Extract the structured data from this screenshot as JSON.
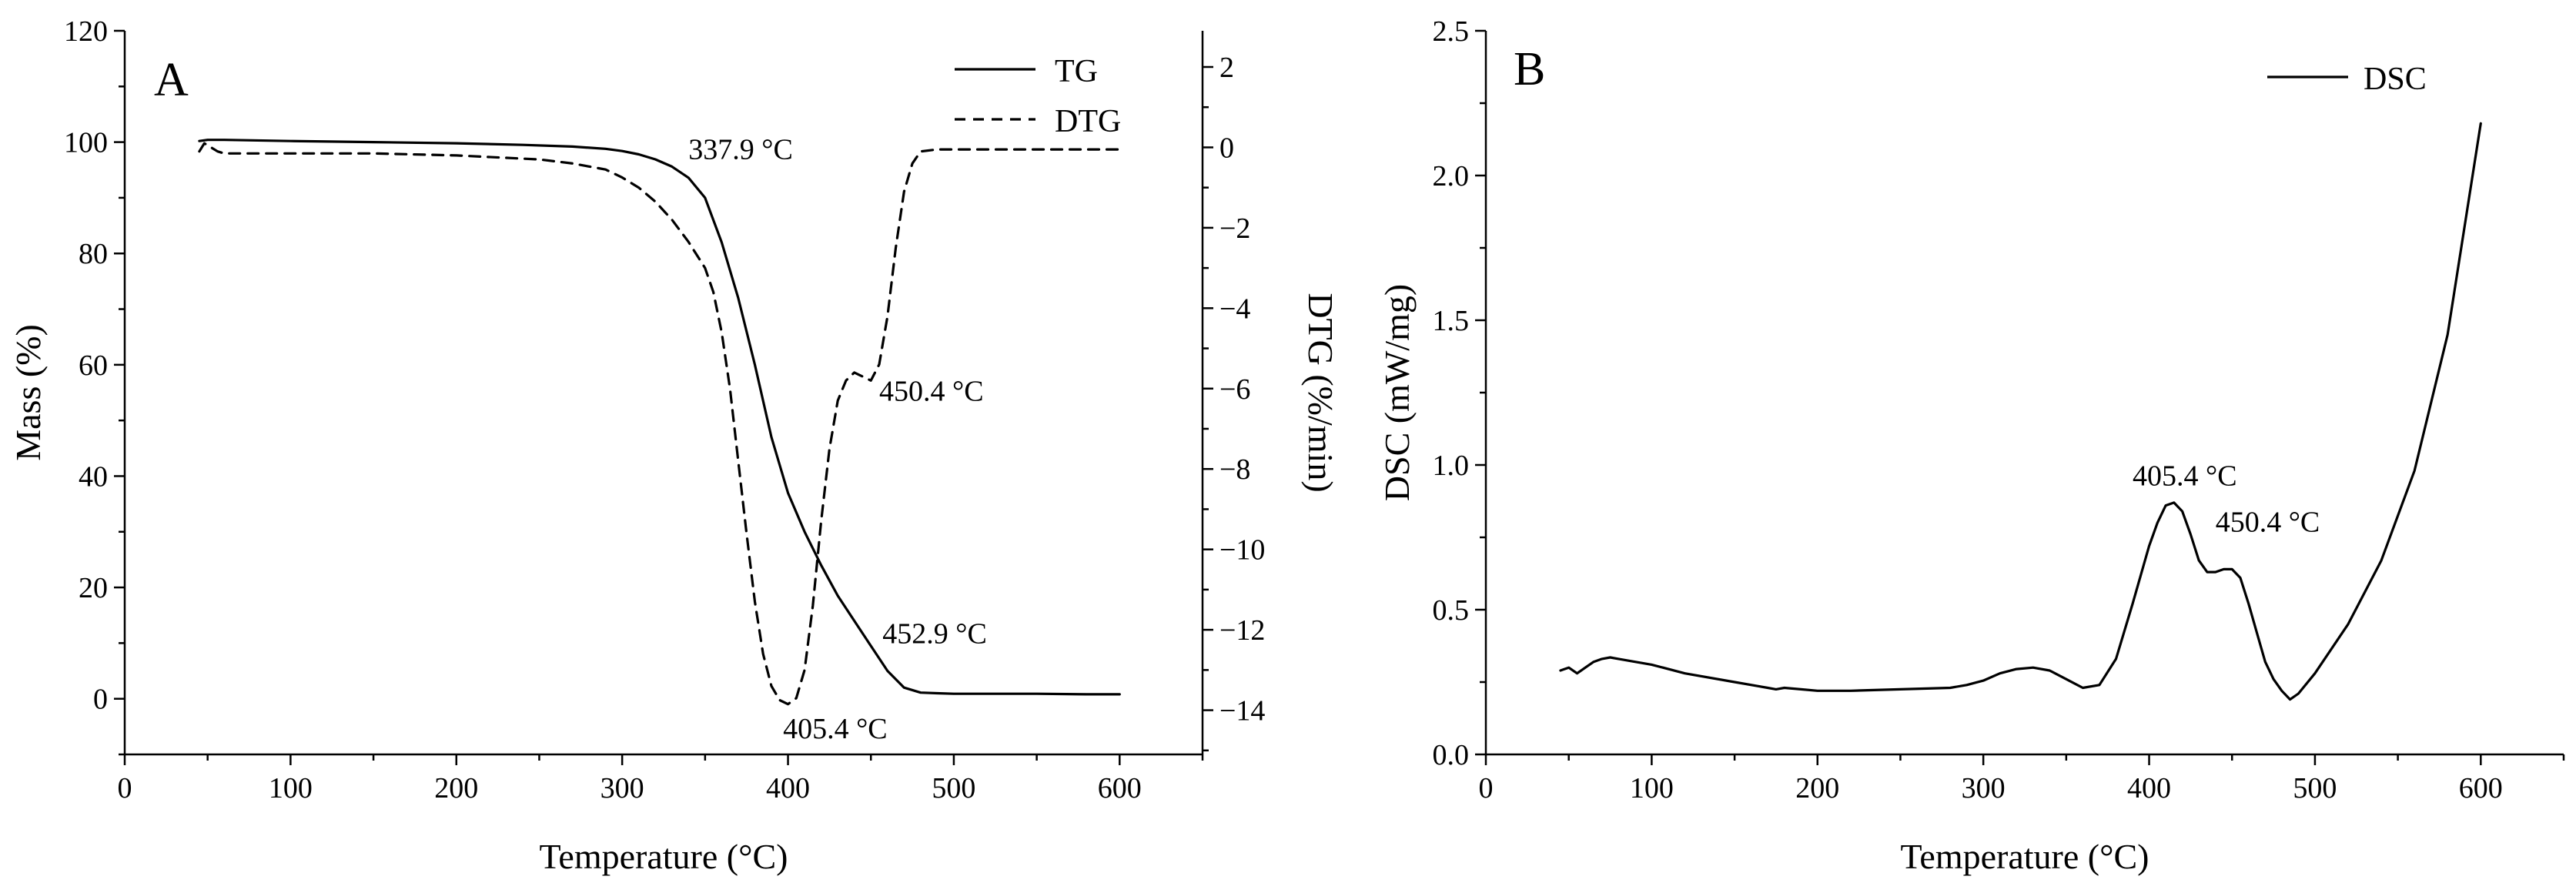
{
  "chart_data": [
    {
      "panel": "A",
      "type": "line",
      "xlabel": "Temperature (°C)",
      "ylabel": "Mass (%)",
      "y2label": "DTG (%/min)",
      "xlim": [
        0,
        650
      ],
      "ylim": [
        -10,
        120
      ],
      "y2lim": [
        -15.1,
        2.9
      ],
      "xticks": [
        0,
        100,
        200,
        300,
        400,
        500,
        600
      ],
      "yticks": [
        0,
        20,
        40,
        60,
        80,
        100,
        120
      ],
      "y2ticks": [
        2,
        0,
        -2,
        -4,
        -6,
        -8,
        -10,
        -12,
        -14
      ],
      "grid": false,
      "legend_position": "top-right",
      "series": [
        {
          "name": "TG",
          "axis": "left",
          "style": "solid",
          "x": [
            45,
            50,
            60,
            100,
            150,
            200,
            240,
            270,
            290,
            300,
            310,
            320,
            330,
            340,
            350,
            360,
            370,
            380,
            390,
            400,
            410,
            420,
            430,
            440,
            450,
            460,
            470,
            480,
            490,
            500,
            520,
            550,
            580,
            600
          ],
          "values": [
            100.2,
            100.4,
            100.4,
            100.2,
            100.0,
            99.8,
            99.5,
            99.2,
            98.8,
            98.4,
            97.8,
            96.9,
            95.6,
            93.6,
            90.0,
            82.0,
            72.0,
            60.0,
            47.0,
            37.0,
            30.0,
            24.0,
            18.5,
            14.0,
            9.5,
            5.0,
            2.0,
            1.1,
            1.0,
            0.9,
            0.9,
            0.9,
            0.8,
            0.8
          ]
        },
        {
          "name": "DTG",
          "axis": "right",
          "style": "dashed",
          "x": [
            45,
            48,
            52,
            56,
            60,
            66,
            75,
            100,
            150,
            200,
            250,
            270,
            290,
            300,
            310,
            320,
            330,
            340,
            350,
            355,
            360,
            365,
            370,
            375,
            380,
            385,
            390,
            395,
            400,
            405,
            410,
            415,
            420,
            425,
            430,
            435,
            440,
            445,
            450,
            455,
            460,
            465,
            470,
            475,
            480,
            490,
            500,
            520,
            550,
            580,
            600
          ],
          "values": [
            -0.1,
            0.1,
            0.0,
            -0.1,
            -0.15,
            -0.15,
            -0.15,
            -0.15,
            -0.15,
            -0.2,
            -0.3,
            -0.4,
            -0.55,
            -0.75,
            -1.0,
            -1.35,
            -1.8,
            -2.35,
            -3.0,
            -3.6,
            -4.6,
            -6.0,
            -7.8,
            -9.6,
            -11.3,
            -12.6,
            -13.4,
            -13.75,
            -13.85,
            -13.7,
            -13.0,
            -11.4,
            -9.3,
            -7.5,
            -6.3,
            -5.8,
            -5.6,
            -5.7,
            -5.8,
            -5.4,
            -4.2,
            -2.5,
            -1.1,
            -0.4,
            -0.1,
            -0.05,
            -0.05,
            -0.05,
            -0.05,
            -0.05,
            -0.05
          ]
        }
      ],
      "annotations": [
        {
          "text": "337.9 °C",
          "x": 340,
          "y": 97,
          "axis": "left"
        },
        {
          "text": "450.4 °C",
          "x": 455,
          "y": -6.3,
          "axis": "right"
        },
        {
          "text": "452.9 °C",
          "x": 457,
          "y": 10,
          "axis": "left"
        },
        {
          "text": "405.4 °C",
          "x": 397,
          "y": -14.7,
          "axis": "right"
        }
      ]
    },
    {
      "panel": "B",
      "type": "line",
      "xlabel": "Temperature (°C)",
      "ylabel": "DSC (mW/mg)",
      "xlim": [
        0,
        650
      ],
      "ylim": [
        0,
        2.5
      ],
      "xticks": [
        0,
        100,
        200,
        300,
        400,
        500,
        600
      ],
      "yticks": [
        0.0,
        0.5,
        1.0,
        1.5,
        2.0,
        2.5
      ],
      "grid": false,
      "legend_position": "top-right",
      "series": [
        {
          "name": "DSC",
          "style": "solid",
          "x": [
            45,
            50,
            55,
            60,
            65,
            70,
            75,
            80,
            90,
            100,
            120,
            150,
            170,
            175,
            180,
            190,
            200,
            220,
            250,
            280,
            290,
            300,
            310,
            320,
            330,
            340,
            350,
            360,
            370,
            380,
            390,
            400,
            405,
            410,
            415,
            420,
            425,
            430,
            435,
            440,
            445,
            450,
            455,
            460,
            465,
            470,
            475,
            480,
            485,
            490,
            500,
            520,
            540,
            560,
            580,
            600
          ],
          "values": [
            0.29,
            0.3,
            0.28,
            0.3,
            0.32,
            0.33,
            0.335,
            0.33,
            0.32,
            0.31,
            0.28,
            0.25,
            0.23,
            0.225,
            0.23,
            0.225,
            0.22,
            0.22,
            0.225,
            0.23,
            0.24,
            0.255,
            0.28,
            0.295,
            0.3,
            0.29,
            0.26,
            0.23,
            0.24,
            0.33,
            0.52,
            0.72,
            0.8,
            0.86,
            0.87,
            0.84,
            0.76,
            0.67,
            0.63,
            0.63,
            0.64,
            0.64,
            0.61,
            0.52,
            0.42,
            0.32,
            0.26,
            0.22,
            0.19,
            0.21,
            0.28,
            0.45,
            0.67,
            0.98,
            1.45,
            2.18
          ]
        }
      ],
      "annotations": [
        {
          "text": "405.4 °C",
          "x": 390,
          "y": 0.93
        },
        {
          "text": "450.4 °C",
          "x": 440,
          "y": 0.77
        }
      ]
    }
  ]
}
